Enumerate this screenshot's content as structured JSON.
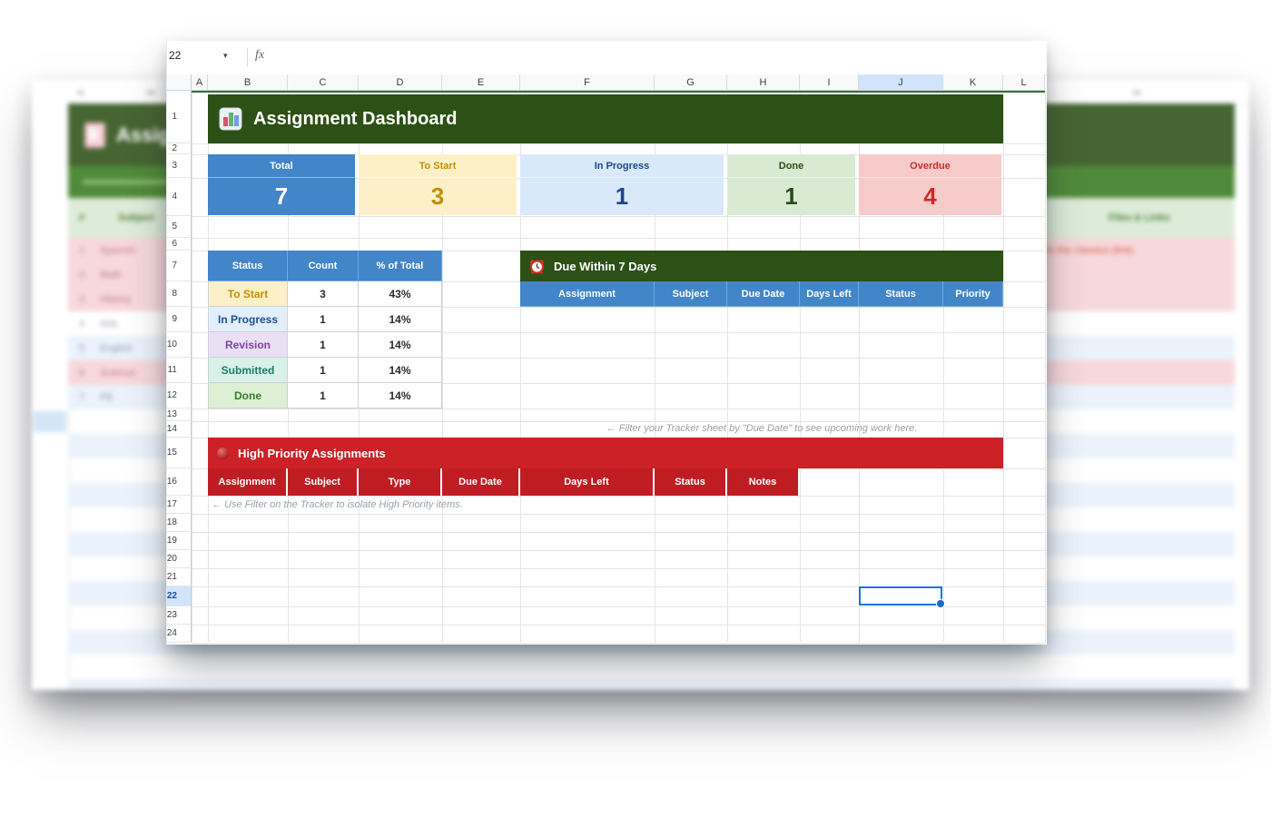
{
  "formula_bar": {
    "name_box_value": "22",
    "fx_label": "fx"
  },
  "grid": {
    "columns": [
      "A",
      "B",
      "C",
      "D",
      "E",
      "F",
      "G",
      "H",
      "I",
      "J",
      "K",
      "L"
    ],
    "rows": [
      "1",
      "2",
      "3",
      "4",
      "5",
      "6",
      "7",
      "8",
      "9",
      "10",
      "11",
      "12",
      "13",
      "14",
      "15",
      "16",
      "17",
      "18",
      "19",
      "20",
      "21",
      "22",
      "23",
      "24"
    ],
    "selected_column": "J",
    "selected_row": "22"
  },
  "colors": {
    "header_green": "#2d5016",
    "bright_green": "#3a7a1f",
    "header_blue": "#4285c8",
    "priority_red": "#cb2127",
    "priority_red_dark": "#c01d23",
    "selection_blue": "#1a73e8",
    "selection_highlight": "#d2e3fc"
  },
  "dashboard": {
    "title": "Assignment Dashboard",
    "cards": [
      {
        "label": "Total",
        "value": "7",
        "bg": "#4285c8",
        "fg": "#ffffff"
      },
      {
        "label": "To Start",
        "value": "3",
        "bg": "#fdf0c8",
        "fg": "#bf9000"
      },
      {
        "label": "In Progress",
        "value": "1",
        "bg": "#d9e9fa",
        "fg": "#1c4587"
      },
      {
        "label": "Done",
        "value": "1",
        "bg": "#d9ead3",
        "fg": "#274e13"
      },
      {
        "label": "Overdue",
        "value": "4",
        "bg": "#f6cbca",
        "fg": "#cc2b2b"
      }
    ],
    "status_table": {
      "headers": [
        "Status",
        "Count",
        "% of Total"
      ],
      "rows": [
        {
          "status": "To Start",
          "count": "3",
          "pct": "43%",
          "bg": "#fdf0c8",
          "fg": "#bf9000"
        },
        {
          "status": "In Progress",
          "count": "1",
          "pct": "14%",
          "bg": "#e2effb",
          "fg": "#1f4e96"
        },
        {
          "status": "Revision",
          "count": "1",
          "pct": "14%",
          "bg": "#e9e0f5",
          "fg": "#8440a5"
        },
        {
          "status": "Submitted",
          "count": "1",
          "pct": "14%",
          "bg": "#d9f1e9",
          "fg": "#1b7f68"
        },
        {
          "status": "Done",
          "count": "1",
          "pct": "14%",
          "bg": "#ddf0d5",
          "fg": "#327d21"
        }
      ]
    },
    "due_section": {
      "title": "Due Within 7 Days",
      "headers": [
        "Assignment",
        "Subject",
        "Due Date",
        "Days Left",
        "Status",
        "Priority"
      ],
      "note": "← Filter your Tracker sheet by \"Due Date\" to see upcoming work here."
    },
    "priority_section": {
      "title": "High Priority Assignments",
      "headers": [
        "Assignment",
        "Subject",
        "Type",
        "Due Date",
        "Days Left",
        "Status",
        "Notes"
      ],
      "note": "← Use Filter on the Tracker to isolate High Priority items."
    }
  },
  "background_sheet": {
    "title": "Assignment Tracker",
    "header_num": "#",
    "header_subject": "Subject",
    "header_files": "Files & Links",
    "link_text": "Go to the classics (link)",
    "rows": [
      {
        "num": "1",
        "subject": "Spanish",
        "bg": "#f7d3d8",
        "fg": "#b26771"
      },
      {
        "num": "2",
        "subject": "Math",
        "bg": "#f7d3d8",
        "fg": "#b26771"
      },
      {
        "num": "3",
        "subject": "History",
        "bg": "#f7d3d8",
        "fg": "#b26771"
      },
      {
        "num": "4",
        "subject": "Arts",
        "bg": "#ffffff",
        "fg": "#8a8f98"
      },
      {
        "num": "5",
        "subject": "English",
        "bg": "#e9f1fc",
        "fg": "#7d8aa0"
      },
      {
        "num": "6",
        "subject": "Science",
        "bg": "#f7d3d8",
        "fg": "#b26771"
      },
      {
        "num": "7",
        "subject": "PE",
        "bg": "#e9f1fc",
        "fg": "#7d8aa0"
      }
    ]
  }
}
